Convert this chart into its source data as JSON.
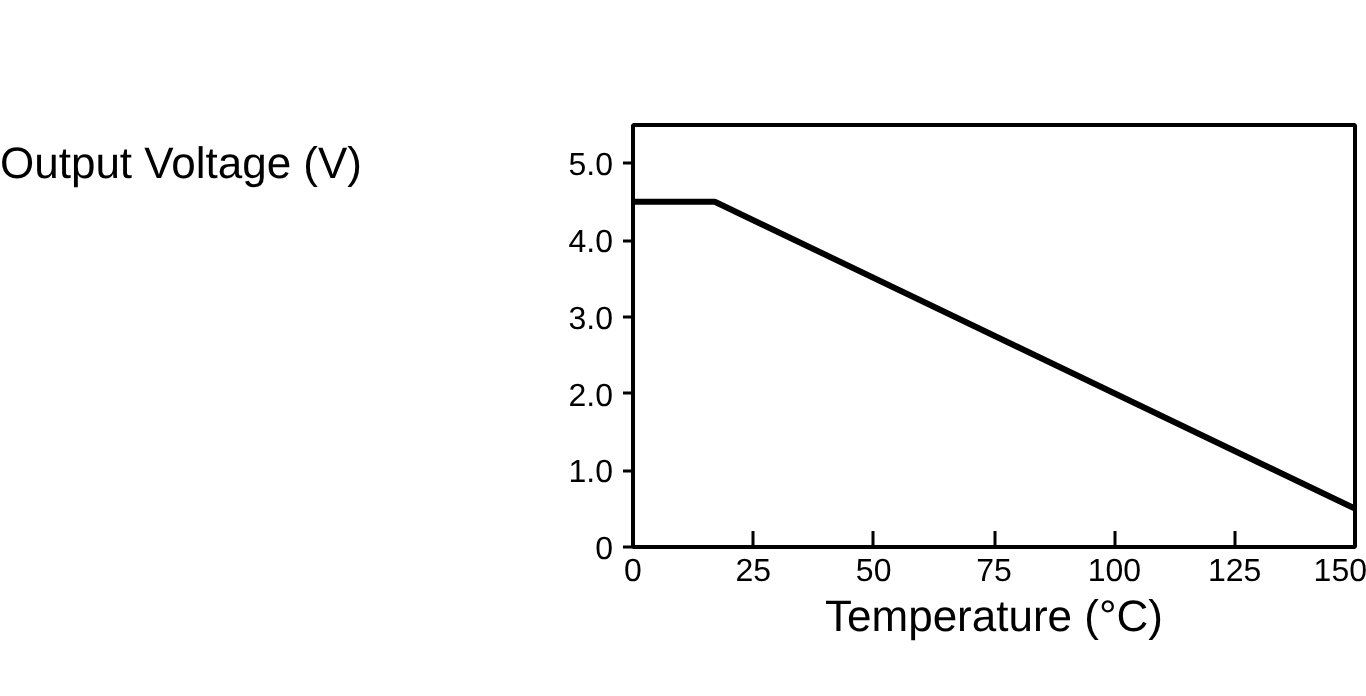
{
  "chart_data": {
    "type": "line",
    "xlabel": "Temperature (°C)",
    "ylabel": "Output Voltage (V)",
    "x": [
      0,
      17,
      150
    ],
    "series": [
      {
        "color": "#000000",
        "values": [
          4.5,
          4.5,
          0.5
        ]
      }
    ],
    "xlim": [
      0,
      150
    ],
    "xticks": [
      0,
      25,
      50,
      75,
      100,
      125,
      150
    ],
    "ylim": [
      0,
      5.5
    ],
    "yticks": [
      {
        "value": 0,
        "label": "0"
      },
      {
        "value": 1,
        "label": "1.0"
      },
      {
        "value": 2,
        "label": "2.0"
      },
      {
        "value": 3,
        "label": "3.0"
      },
      {
        "value": 4,
        "label": "4.0"
      },
      {
        "value": 5,
        "label": "5.0"
      }
    ],
    "grid": false,
    "marker": "none",
    "line_style": "solid"
  }
}
